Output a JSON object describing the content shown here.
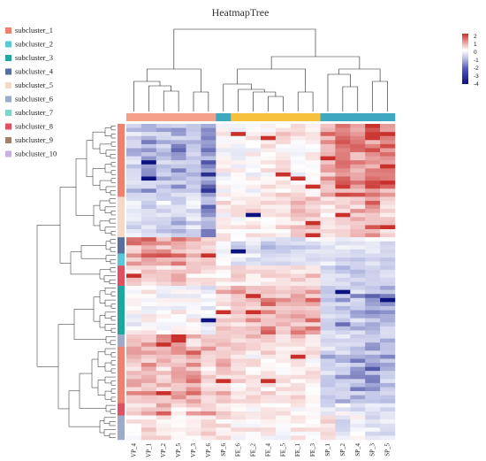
{
  "chart_data": {
    "type": "heatmap",
    "title": "HeatmapTree",
    "columns": [
      "VP_4",
      "VP_1",
      "VP_2",
      "VP_5",
      "VP_3",
      "VP_6",
      "SP_6",
      "FE_6",
      "FE_2",
      "FE_4",
      "FE_5",
      "FE_1",
      "FE_3",
      "SP_1",
      "SP_2",
      "SP_4",
      "SP_3",
      "SP_5"
    ],
    "column_groups": [
      {
        "name": "VP",
        "color": "#F4A08A",
        "count": 6
      },
      {
        "name": "SP_6",
        "color": "#3FA8C0",
        "count": 1
      },
      {
        "name": "FE",
        "color": "#F6C23E",
        "count": 6
      },
      {
        "name": "SP",
        "color": "#3FA8C0",
        "count": 5
      }
    ],
    "subclusters": [
      {
        "name": "subcluster_1",
        "color": "#F08070"
      },
      {
        "name": "subcluster_2",
        "color": "#5BC8D8"
      },
      {
        "name": "subcluster_3",
        "color": "#1FA6A0"
      },
      {
        "name": "subcluster_4",
        "color": "#5A6E9E"
      },
      {
        "name": "subcluster_5",
        "color": "#F3D9C6"
      },
      {
        "name": "subcluster_6",
        "color": "#9FA9C8"
      },
      {
        "name": "subcluster_7",
        "color": "#7FD6C6"
      },
      {
        "name": "subcluster_8",
        "color": "#E05060"
      },
      {
        "name": "subcluster_9",
        "color": "#A08068"
      },
      {
        "name": "subcluster_10",
        "color": "#C8B0E0"
      }
    ],
    "row_blocks": [
      {
        "subcluster": "subcluster_1",
        "rows": 18,
        "pattern": [
          -0.9,
          -1.1,
          -1.0,
          -1.2,
          -1.0,
          -1.6,
          0.1,
          0.0,
          0.2,
          0.3,
          0.4,
          0.2,
          0.3,
          1.2,
          1.5,
          1.4,
          1.6,
          1.5
        ]
      },
      {
        "subcluster": "subcluster_5",
        "rows": 10,
        "pattern": [
          -0.6,
          -0.8,
          -0.7,
          -0.9,
          -0.6,
          -1.4,
          0.2,
          0.3,
          0.4,
          0.5,
          0.6,
          0.7,
          0.8,
          0.4,
          0.6,
          0.9,
          1.4,
          0.8
        ]
      },
      {
        "subcluster": "subcluster_4",
        "rows": 4,
        "pattern": [
          1.2,
          1.3,
          1.1,
          1.4,
          1.0,
          0.6,
          0.2,
          -0.6,
          -0.7,
          -0.8,
          -0.6,
          -0.7,
          -0.5,
          -0.2,
          -0.4,
          -0.3,
          -0.4,
          -0.5
        ]
      },
      {
        "subcluster": "subcluster_2",
        "rows": 3,
        "pattern": [
          1.0,
          1.4,
          1.2,
          1.3,
          1.1,
          0.8,
          0.1,
          -0.5,
          -0.6,
          -0.5,
          -0.7,
          -0.6,
          -0.4,
          -0.6,
          -0.8,
          -0.7,
          -0.5,
          -0.9
        ]
      },
      {
        "subcluster": "subcluster_8",
        "rows": 5,
        "pattern": [
          0.6,
          0.7,
          0.6,
          0.8,
          0.5,
          0.3,
          0.4,
          0.5,
          0.6,
          0.4,
          0.5,
          0.6,
          0.7,
          -0.8,
          -0.9,
          -1.0,
          -0.8,
          -0.7
        ]
      },
      {
        "subcluster": "subcluster_3",
        "rows": 12,
        "pattern": [
          -0.1,
          0.0,
          -0.2,
          0.1,
          0.0,
          -0.3,
          0.6,
          0.9,
          1.0,
          1.1,
          0.9,
          1.0,
          1.2,
          -1.0,
          -1.2,
          -1.1,
          -1.4,
          -1.3
        ]
      },
      {
        "subcluster": "subcluster_6",
        "rows": 3,
        "pattern": [
          0.8,
          0.9,
          0.8,
          0.9,
          0.7,
          0.9,
          0.6,
          0.6,
          0.5,
          0.6,
          0.5,
          0.6,
          0.5,
          -0.8,
          -1.0,
          -1.1,
          -1.3,
          -1.2
        ]
      },
      {
        "subcluster": "subcluster_1",
        "rows": 14,
        "pattern": [
          0.9,
          1.0,
          0.8,
          1.0,
          1.1,
          0.7,
          0.8,
          0.5,
          0.3,
          0.4,
          0.2,
          0.3,
          0.2,
          -0.9,
          -1.1,
          -1.3,
          -1.4,
          -1.2
        ]
      },
      {
        "subcluster": "subcluster_8",
        "rows": 3,
        "pattern": [
          0.5,
          0.6,
          1.2,
          0.4,
          0.6,
          0.8,
          0.5,
          0.2,
          0.1,
          0.2,
          0.1,
          0.2,
          0.1,
          -0.5,
          -0.3,
          -0.6,
          -0.5,
          -0.4
        ]
      },
      {
        "subcluster": "subcluster_6",
        "rows": 6,
        "pattern": [
          0.3,
          0.6,
          0.5,
          0.4,
          0.6,
          0.7,
          0.5,
          0.3,
          0.2,
          0.3,
          0.2,
          0.3,
          0.4,
          0.6,
          -0.5,
          0.2,
          -0.6,
          -0.4
        ]
      }
    ],
    "color_scale": {
      "min": -4,
      "max": 2,
      "ticks": [
        2,
        1,
        0,
        -1,
        -2,
        -3,
        -4
      ],
      "low": "#0B1280",
      "mid": "#FFFFFF",
      "high": "#C9302C"
    }
  }
}
